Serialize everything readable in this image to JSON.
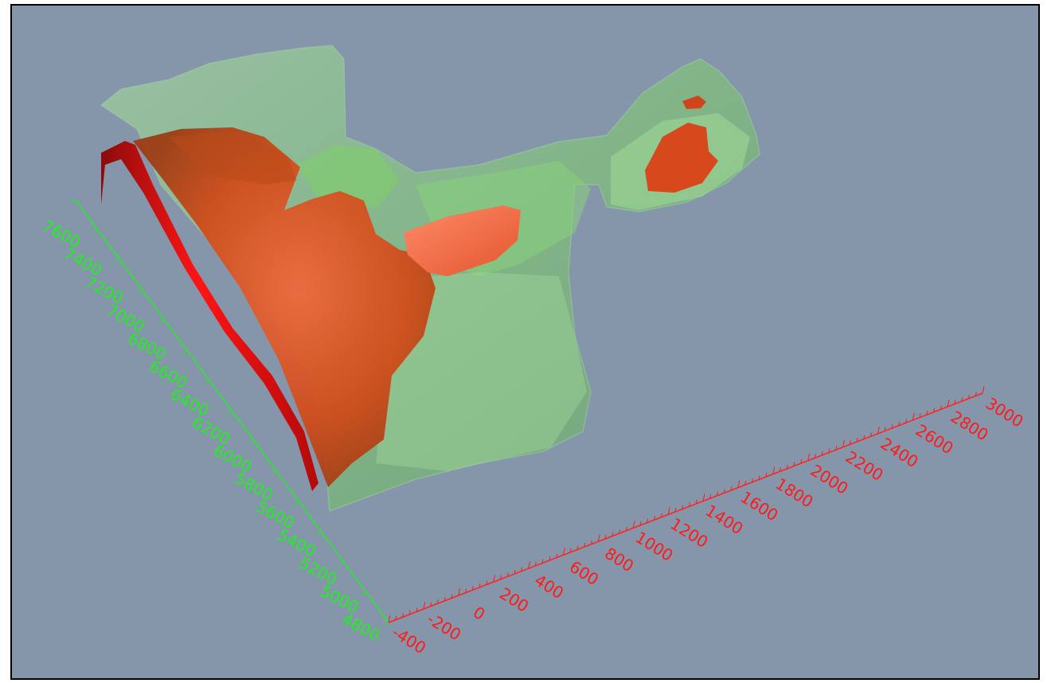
{
  "viewport": {
    "background_color": "#8596aa",
    "frame_color": "#000000"
  },
  "axes": {
    "left_axis": {
      "color": "#22ee22",
      "tick_labels": [
        "4800",
        "5000",
        "5200",
        "5400",
        "5600",
        "5800",
        "6000",
        "6200",
        "6400",
        "6600",
        "6800",
        "7000",
        "7200",
        "7400",
        "7600"
      ]
    },
    "bottom_axis": {
      "color": "#ff1a1a",
      "tick_labels": [
        "-400",
        "-200",
        "0",
        "200",
        "400",
        "600",
        "800",
        "1000",
        "1200",
        "1400",
        "1600",
        "1800",
        "2000",
        "2200",
        "2400",
        "2600",
        "2800",
        "3000"
      ]
    }
  },
  "surfaces": {
    "outer_shell": {
      "description": "translucent green isosurface",
      "color": "#8fd08a"
    },
    "inner_body": {
      "description": "opaque orange-red isosurface",
      "color": "#d4461c"
    },
    "fault_sheet": {
      "description": "red curved sheet",
      "color": "#e00c0c"
    }
  }
}
